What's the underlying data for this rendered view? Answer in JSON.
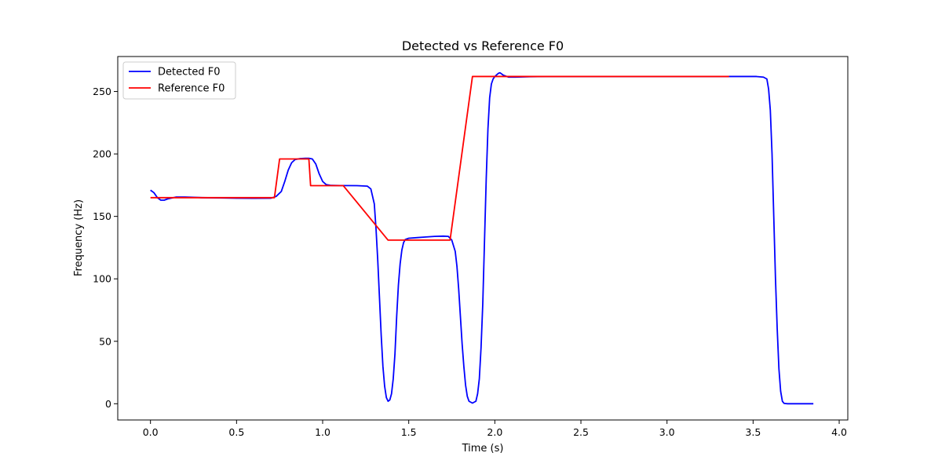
{
  "chart_data": {
    "type": "line",
    "title": "Detected vs Reference F0",
    "xlabel": "Time (s)",
    "ylabel": "Frequency (Hz)",
    "xlim": [
      -0.19,
      4.05
    ],
    "ylim": [
      -13,
      278
    ],
    "xticks": [
      0.0,
      0.5,
      1.0,
      1.5,
      2.0,
      2.5,
      3.0,
      3.5,
      4.0
    ],
    "xtick_labels": [
      "0.0",
      "0.5",
      "1.0",
      "1.5",
      "2.0",
      "2.5",
      "3.0",
      "3.5",
      "4.0"
    ],
    "yticks": [
      0,
      50,
      100,
      150,
      200,
      250
    ],
    "ytick_labels": [
      "0",
      "50",
      "100",
      "150",
      "200",
      "250"
    ],
    "grid": false,
    "legend_position": "top-left",
    "series": [
      {
        "name": "Detected F0",
        "color": "#0000ff",
        "points": [
          [
            0.0,
            171
          ],
          [
            0.02,
            169
          ],
          [
            0.04,
            165
          ],
          [
            0.06,
            163
          ],
          [
            0.08,
            163
          ],
          [
            0.1,
            164
          ],
          [
            0.15,
            165.5
          ],
          [
            0.2,
            165.5
          ],
          [
            0.3,
            165
          ],
          [
            0.4,
            164.8
          ],
          [
            0.5,
            164.6
          ],
          [
            0.6,
            164.5
          ],
          [
            0.7,
            164.6
          ],
          [
            0.73,
            166
          ],
          [
            0.76,
            170
          ],
          [
            0.78,
            178
          ],
          [
            0.8,
            187
          ],
          [
            0.82,
            193
          ],
          [
            0.84,
            195.5
          ],
          [
            0.87,
            196.3
          ],
          [
            0.9,
            196.5
          ],
          [
            0.92,
            196.5
          ],
          [
            0.94,
            196
          ],
          [
            0.96,
            192
          ],
          [
            0.98,
            184
          ],
          [
            1.0,
            178
          ],
          [
            1.02,
            175.5
          ],
          [
            1.05,
            174.8
          ],
          [
            1.1,
            174.7
          ],
          [
            1.2,
            174.6
          ],
          [
            1.26,
            174.2
          ],
          [
            1.28,
            172
          ],
          [
            1.3,
            160
          ],
          [
            1.31,
            140
          ],
          [
            1.32,
            115
          ],
          [
            1.33,
            85
          ],
          [
            1.34,
            55
          ],
          [
            1.35,
            30
          ],
          [
            1.36,
            14
          ],
          [
            1.37,
            5
          ],
          [
            1.38,
            2
          ],
          [
            1.39,
            3
          ],
          [
            1.4,
            8
          ],
          [
            1.41,
            20
          ],
          [
            1.42,
            40
          ],
          [
            1.43,
            70
          ],
          [
            1.44,
            95
          ],
          [
            1.45,
            112
          ],
          [
            1.46,
            123
          ],
          [
            1.47,
            129
          ],
          [
            1.48,
            131.5
          ],
          [
            1.5,
            132.5
          ],
          [
            1.55,
            133
          ],
          [
            1.6,
            133.5
          ],
          [
            1.65,
            134
          ],
          [
            1.7,
            134.2
          ],
          [
            1.73,
            134
          ],
          [
            1.75,
            131
          ],
          [
            1.77,
            122
          ],
          [
            1.78,
            110
          ],
          [
            1.79,
            92
          ],
          [
            1.8,
            70
          ],
          [
            1.81,
            48
          ],
          [
            1.82,
            30
          ],
          [
            1.83,
            15
          ],
          [
            1.84,
            6
          ],
          [
            1.85,
            2
          ],
          [
            1.87,
            0.5
          ],
          [
            1.89,
            2
          ],
          [
            1.9,
            8
          ],
          [
            1.91,
            20
          ],
          [
            1.92,
            45
          ],
          [
            1.93,
            80
          ],
          [
            1.94,
            130
          ],
          [
            1.95,
            180
          ],
          [
            1.96,
            220
          ],
          [
            1.97,
            245
          ],
          [
            1.98,
            256
          ],
          [
            1.99,
            260
          ],
          [
            2.0,
            262
          ],
          [
            2.02,
            264.5
          ],
          [
            2.03,
            265
          ],
          [
            2.05,
            263
          ],
          [
            2.08,
            261.5
          ],
          [
            2.12,
            261.5
          ],
          [
            2.2,
            261.8
          ],
          [
            2.3,
            262
          ],
          [
            2.5,
            262
          ],
          [
            3.0,
            262
          ],
          [
            3.4,
            262
          ],
          [
            3.52,
            262
          ],
          [
            3.56,
            261.5
          ],
          [
            3.58,
            260
          ],
          [
            3.59,
            252
          ],
          [
            3.6,
            235
          ],
          [
            3.61,
            200
          ],
          [
            3.62,
            150
          ],
          [
            3.63,
            100
          ],
          [
            3.64,
            60
          ],
          [
            3.65,
            28
          ],
          [
            3.66,
            10
          ],
          [
            3.67,
            2
          ],
          [
            3.68,
            0.3
          ],
          [
            3.7,
            0
          ],
          [
            3.8,
            0
          ],
          [
            3.85,
            0
          ]
        ]
      },
      {
        "name": "Reference F0",
        "color": "#ff0000",
        "points": [
          [
            0.0,
            165
          ],
          [
            0.72,
            165
          ],
          [
            0.75,
            196
          ],
          [
            0.92,
            196
          ],
          [
            0.93,
            174.6
          ],
          [
            1.12,
            174.6
          ],
          [
            1.38,
            131
          ],
          [
            1.74,
            131
          ],
          [
            1.87,
            262
          ],
          [
            3.36,
            262
          ]
        ]
      }
    ]
  }
}
